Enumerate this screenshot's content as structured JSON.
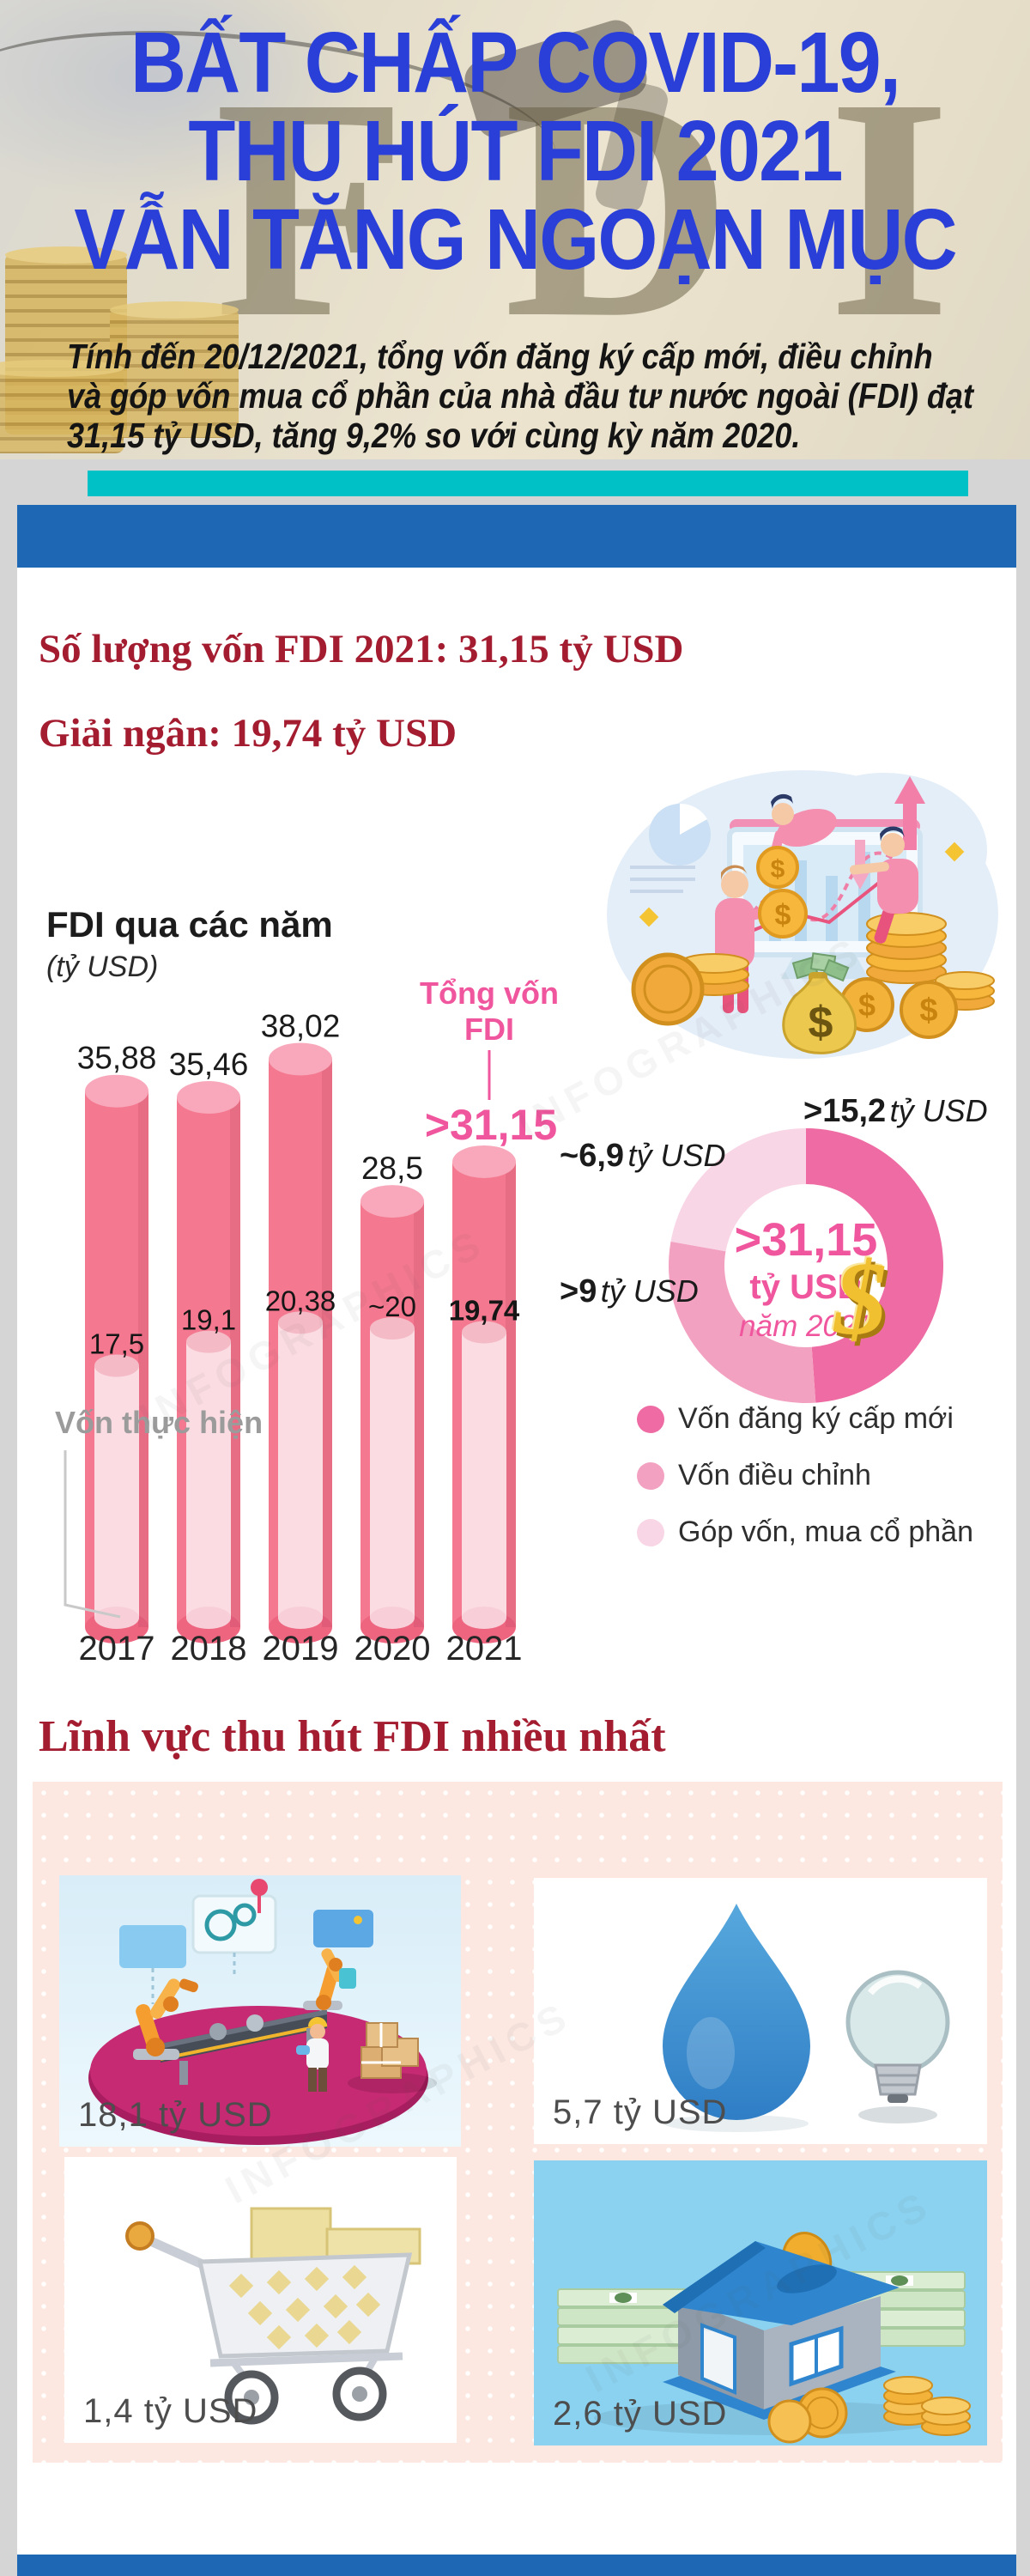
{
  "page": {
    "background": "#d5d5d5",
    "footer_color": "#1e67b5"
  },
  "watermark": {
    "text": "INFOGRAPHICS"
  },
  "hero": {
    "title_lines": [
      "BẤT CHẤP COVID-19,",
      "THU HÚT FDI 2021",
      "VẪN TĂNG NGOẠN MỤC"
    ],
    "title_color": "#2a3fd8",
    "ghost_text": "FDI",
    "subtitle_lines": [
      "Tính đến 20/12/2021, tổng vốn đăng ký cấp mới, điều chỉnh",
      "và góp vốn mua cổ phần của nhà đầu tư nước ngoài (FDI) đạt",
      "31,15 tỷ USD, tăng 9,2% so với cùng kỳ năm 2020."
    ],
    "accent_teal": "#00c2c6",
    "accent_blue": "#1e67b5"
  },
  "summary": {
    "color": "#a41c30",
    "line1": "Số lượng vốn FDI 2021: 31,15 tỷ USD",
    "line2": "Giải ngân: 19,74 tỷ USD"
  },
  "illustration": {
    "name": "investors-growth-chart-illustration",
    "dollar_glyph": "$",
    "icons": [
      "pie-chart-icon",
      "stock-board-icon",
      "up-arrow-icon",
      "coin-stack-icon",
      "money-bag-icon",
      "investor-figures"
    ]
  },
  "chart_data": [
    {
      "type": "bar",
      "title": "FDI qua các năm",
      "subtitle": "(tỷ USD)",
      "categories": [
        "2017",
        "2018",
        "2019",
        "2020",
        "2021"
      ],
      "series": [
        {
          "name": "Tổng vốn FDI",
          "values": [
            35.88,
            35.46,
            38.02,
            28.5,
            31.15
          ],
          "labels": [
            "35,88",
            "35,46",
            "38,02",
            "28,5",
            ">31,15"
          ],
          "color": "#f4788f",
          "top_color": "#f8a8ba",
          "bottom_color": "#ee6580",
          "emphasis_index": 4,
          "emphasis_color": "#f0569d"
        },
        {
          "name": "Vốn thực hiện",
          "values": [
            17.5,
            19.1,
            20.38,
            20,
            19.74
          ],
          "labels": [
            "17,5",
            "19,1",
            "20,38",
            "~20",
            "19,74"
          ],
          "color": "#fbdce2",
          "top_color": "#f4bac6",
          "bottom_color": "#f8cfd8",
          "bold_index": 4
        }
      ],
      "annotation_lines": [
        "Tổng vốn",
        "FDI"
      ],
      "annotation_color": "#f0569d",
      "inner_label": "Vốn thực hiện",
      "ylim": [
        0,
        40
      ],
      "grid": false
    },
    {
      "type": "donut",
      "center_lines": [
        ">31,15",
        "tỷ USD",
        "năm 2021"
      ],
      "center_color": "#f0569d",
      "dollar_sign": "$",
      "total": 31.15,
      "slices": [
        {
          "value": 15.2,
          "value_label": ">15,2",
          "unit_label": "tỷ USD",
          "color": "#ee6ba3",
          "legend": "Vốn đăng ký cấp mới"
        },
        {
          "value": 9.0,
          "value_label": ">9",
          "unit_label": "tỷ USD",
          "color": "#f3a1c0",
          "legend": "Vốn điều chỉnh"
        },
        {
          "value": 6.9,
          "value_label": "~6,9",
          "unit_label": "tỷ USD",
          "color": "#f9d6e5",
          "legend": "Góp vốn, mua cổ phần"
        }
      ],
      "legend_position": "below-right"
    }
  ],
  "sectors": {
    "heading": "Lĩnh vực thu hút FDI nhiều nhất",
    "heading_color": "#a41c30",
    "cards": [
      {
        "label": "18,1 tỷ USD",
        "icon": "manufacturing-automation-illustration"
      },
      {
        "label": "5,7 tỷ USD",
        "icon": "water-drop-and-light-bulb-illustration"
      },
      {
        "label": "1,4 tỷ USD",
        "icon": "shopping-cart-illustration"
      },
      {
        "label": "2,6 tỷ USD",
        "icon": "house-piggy-bank-illustration"
      }
    ]
  }
}
